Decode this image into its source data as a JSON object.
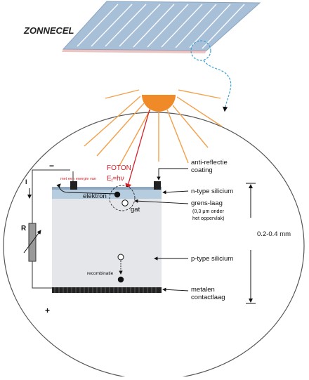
{
  "title": "ZONNECEL",
  "photon": {
    "label": "FOTON",
    "energy_prefix": "met een energie van",
    "energy_symbol": "E",
    "energy_subscript": "f",
    "energy_rhs": "=hν"
  },
  "circuit": {
    "minus": "−",
    "plus": "+",
    "current": "I",
    "resistor": "R"
  },
  "cell": {
    "electron": "elektron",
    "hole": "gat",
    "recombination": "recombinatie"
  },
  "callouts": {
    "antireflection": [
      "anti-reflectie",
      "coating"
    ],
    "ntype": "n-type silicium",
    "junction": [
      "grens-laag",
      "(0,3 μm onder",
      "het oppervlak)"
    ],
    "ptype": "p-type silicium",
    "contact": [
      "metalen",
      "contactlaag"
    ],
    "thickness": "0.2-0.4 mm"
  },
  "colors": {
    "sun": "#f08a28",
    "rays": "#f3a04a",
    "photon": "#d4202a",
    "panel": "#a8bfd8",
    "panel_lines": "#ffffff",
    "ntype": "#b6cde0",
    "ptype": "#e4e6ea",
    "contact": "#222222",
    "dashed": "#3aa0d8"
  }
}
